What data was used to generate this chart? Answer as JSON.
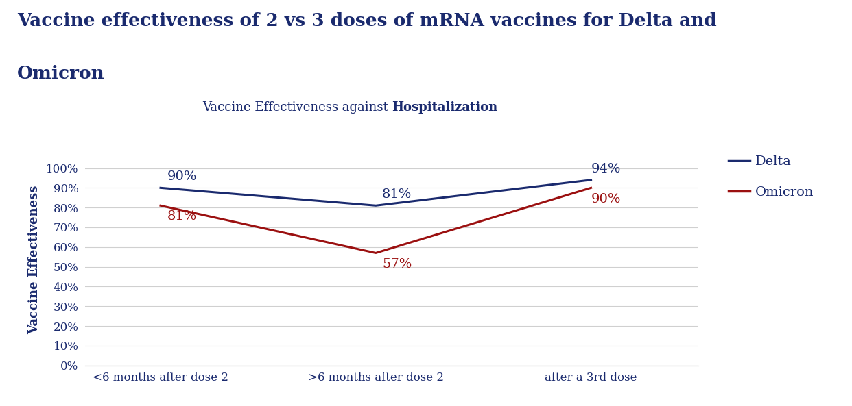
{
  "title_line1": "Vaccine effectiveness of 2 vs 3 doses of mRNA vaccines for Delta and",
  "title_line2": "Omicron",
  "subtitle_normal": "Vaccine Effectiveness against ",
  "subtitle_bold": "Hospitalization",
  "ylabel": "Vaccine Effectiveness",
  "x_labels": [
    "<6 months after dose 2",
    ">6 months after dose 2",
    "after a 3rd dose"
  ],
  "x_values": [
    0,
    1,
    2
  ],
  "delta_values": [
    90,
    81,
    94
  ],
  "omicron_values": [
    81,
    57,
    90
  ],
  "delta_labels": [
    "90%",
    "81%",
    "94%"
  ],
  "omicron_labels": [
    "81%",
    "57%",
    "90%"
  ],
  "delta_color": "#1a2a6e",
  "omicron_color": "#9b1010",
  "background_color": "#ffffff",
  "title_color": "#1a2a6e",
  "y_ticks": [
    0,
    10,
    20,
    30,
    40,
    50,
    60,
    70,
    80,
    90,
    100
  ],
  "y_tick_labels": [
    "0%",
    "10%",
    "20%",
    "30%",
    "40%",
    "50%",
    "60%",
    "70%",
    "80%",
    "90%",
    "100%"
  ],
  "ylim": [
    0,
    107
  ],
  "legend_delta": "Delta",
  "legend_omicron": "Omicron",
  "title_fontsize": 19,
  "subtitle_fontsize": 13,
  "tick_label_fontsize": 12,
  "data_label_fontsize": 14,
  "ylabel_fontsize": 13,
  "legend_fontsize": 14
}
